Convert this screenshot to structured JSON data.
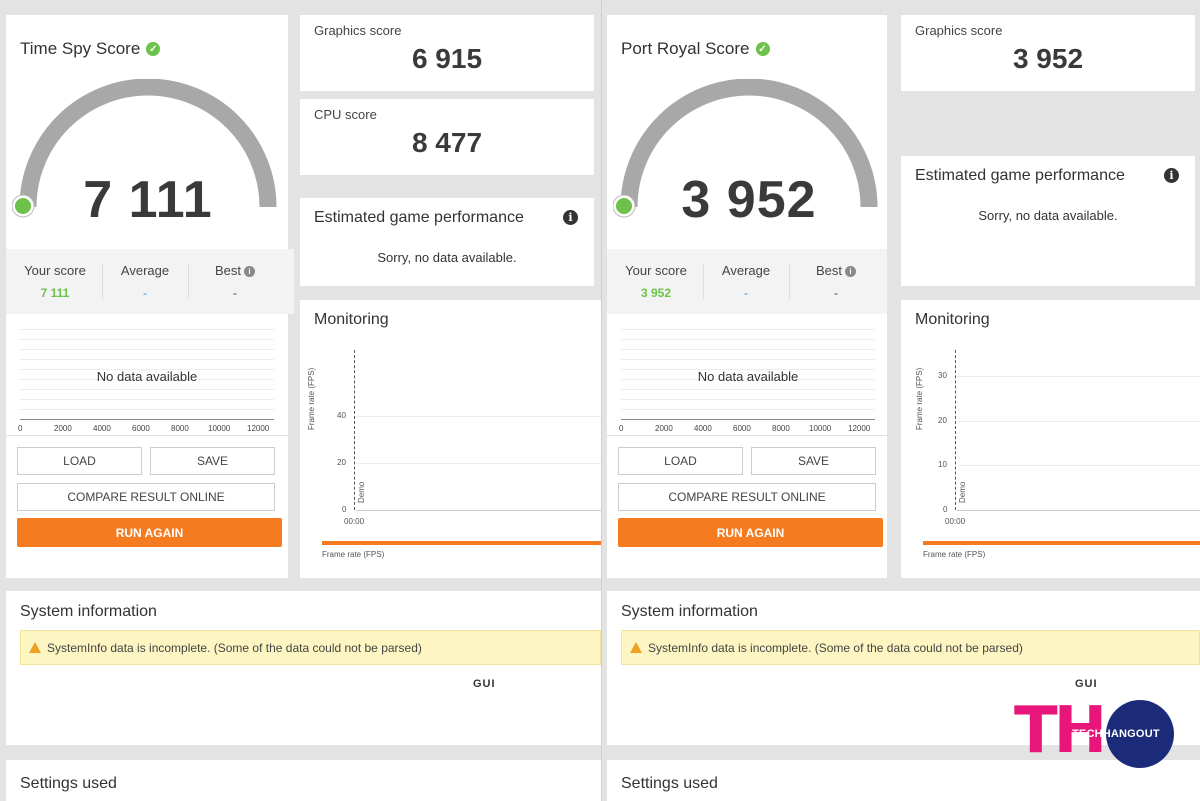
{
  "left": {
    "score_title": "Time Spy Score",
    "score_value": "7 111",
    "gauge_fraction": 0.0,
    "your_score_label": "Your score",
    "your_score_value": "7 111",
    "average_label": "Average",
    "average_value": "-",
    "best_label": "Best",
    "best_value": "-",
    "no_data_text": "No data available",
    "x_ticks": [
      "0",
      "2000",
      "4000",
      "6000",
      "8000",
      "10000",
      "12000"
    ],
    "load_label": "LOAD",
    "save_label": "SAVE",
    "compare_label": "COMPARE RESULT ONLINE",
    "run_again_label": "RUN AGAIN",
    "graphics_label": "Graphics score",
    "graphics_value": "6 915",
    "cpu_label": "CPU score",
    "cpu_value": "8 477",
    "egp_title": "Estimated game performance",
    "egp_text": "Sorry, no data available.",
    "monitoring_title": "Monitoring",
    "mon_y_label": "Frame rate (FPS)",
    "mon_y_ticks": [
      "40",
      "20",
      "0"
    ],
    "mon_marker": "Demo",
    "mon_x_tick": "00:00",
    "mon_legend": "Frame rate (FPS)",
    "sysinfo_title": "System information",
    "sysinfo_warning": "SystemInfo data is incomplete. (Some of the data could not be parsed)",
    "gui_label": "GUI",
    "settings_title": "Settings used"
  },
  "right": {
    "score_title": "Port Royal Score",
    "score_value": "3 952",
    "gauge_fraction": 0.0,
    "your_score_label": "Your score",
    "your_score_value": "3 952",
    "average_label": "Average",
    "average_value": "-",
    "best_label": "Best",
    "best_value": "-",
    "no_data_text": "No data available",
    "x_ticks": [
      "0",
      "2000",
      "4000",
      "6000",
      "8000",
      "10000",
      "12000"
    ],
    "load_label": "LOAD",
    "save_label": "SAVE",
    "compare_label": "COMPARE RESULT ONLINE",
    "run_again_label": "RUN AGAIN",
    "graphics_label": "Graphics score",
    "graphics_value": "3 952",
    "egp_title": "Estimated game performance",
    "egp_text": "Sorry, no data available.",
    "monitoring_title": "Monitoring",
    "mon_y_label": "Frame rate (FPS)",
    "mon_y_ticks": [
      "30",
      "20",
      "10",
      "0"
    ],
    "mon_marker": "Demo",
    "mon_x_tick": "00:00",
    "mon_legend": "Frame rate (FPS)",
    "sysinfo_title": "System information",
    "sysinfo_warning": "SystemInfo data is incomplete. (Some of the data could not be parsed)",
    "gui_label": "GUI",
    "settings_title": "Settings used"
  },
  "watermark": {
    "logo_letters": "TH",
    "logo_text": "TECHHANGOUT"
  },
  "colors": {
    "accent_orange": "#f47b20",
    "score_green": "#6cc24a",
    "gauge_gray": "#a8a8a8",
    "average_blue": "#3a8ed8",
    "warning_yellow": "#fdf6c3",
    "logo_pink": "#e8157a",
    "logo_navy": "#1b2b7a"
  }
}
